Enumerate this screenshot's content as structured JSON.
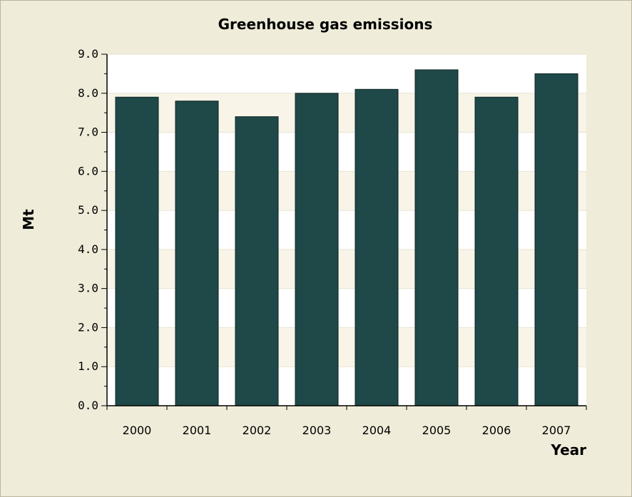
{
  "chart_data": {
    "type": "bar",
    "title": "Greenhouse gas emissions",
    "xlabel": "Year",
    "ylabel": "Mt",
    "categories": [
      "2000",
      "2001",
      "2002",
      "2003",
      "2004",
      "2005",
      "2006",
      "2007"
    ],
    "values": [
      7.9,
      7.8,
      7.4,
      8.0,
      8.1,
      8.6,
      7.9,
      8.5
    ],
    "ylim": [
      0,
      9
    ],
    "yticks": [
      "0.0",
      "1.0",
      "2.0",
      "3.0",
      "4.0",
      "5.0",
      "6.0",
      "7.0",
      "8.0",
      "9.0"
    ],
    "grid": true,
    "legend": "none",
    "colors": {
      "bar": "#1f4848",
      "bar_outline": "#0e2626",
      "plot_band_light": "#ffffff",
      "plot_band_dark": "#f8f4e8",
      "background": "#efecd9"
    }
  }
}
